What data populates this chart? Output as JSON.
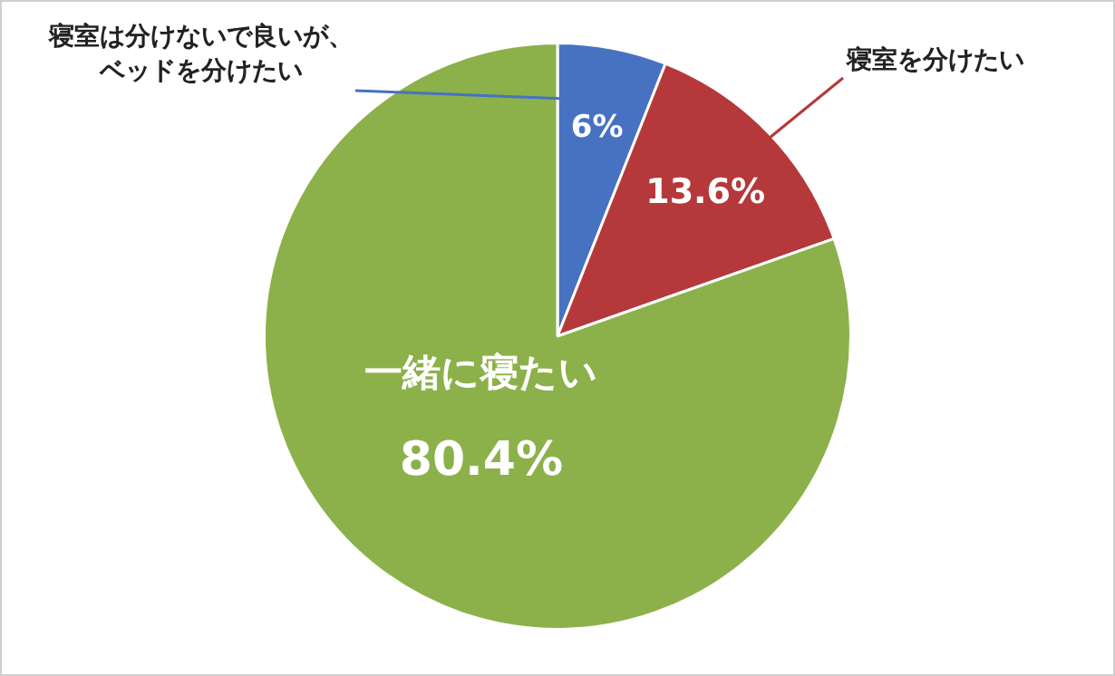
{
  "chart_data": {
    "type": "pie",
    "categories": [
      "寝室は分けないで良いが、ベッドを分けたい",
      "寝室を分けたい",
      "一緒に寝たい"
    ],
    "values": [
      6,
      13.6,
      80.4
    ],
    "colors": [
      "#4672c1",
      "#b5393b",
      "#8cb14a"
    ],
    "value_labels": [
      "6%",
      "13.6%",
      "80.4%"
    ],
    "legend": false
  }
}
